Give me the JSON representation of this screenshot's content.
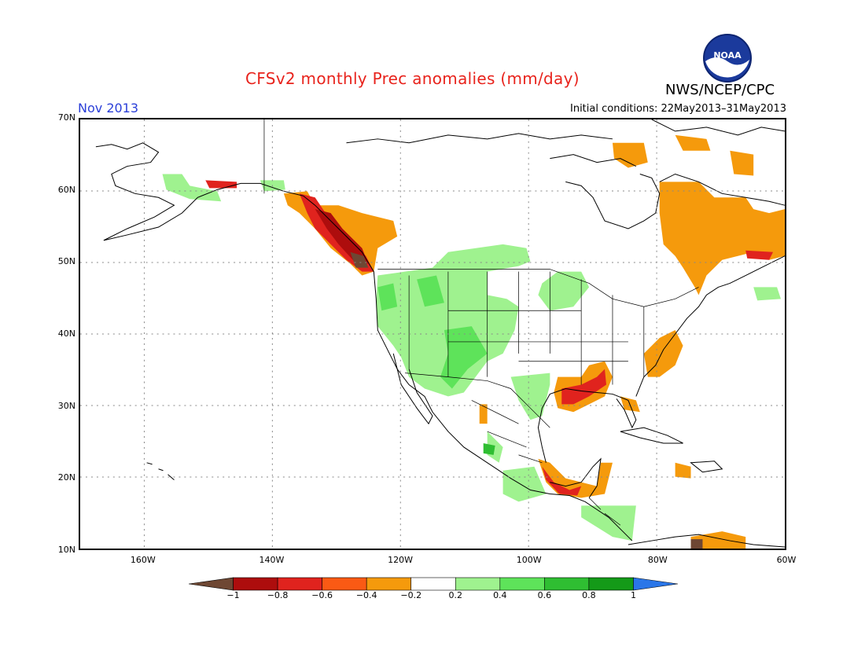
{
  "title": "CFSv2 monthly Prec anomalies (mm/day)",
  "agency": "NWS/NCEP/CPC",
  "logo_text": "NOAA",
  "period": "Nov 2013",
  "initial_conditions": "Initial conditions: 22May2013–31May2013",
  "map": {
    "lon_range": [
      -170,
      -60
    ],
    "lat_range": [
      10,
      70
    ],
    "grid": true,
    "lat_labels": [
      "70N",
      "60N",
      "50N",
      "40N",
      "30N",
      "20N",
      "10N"
    ],
    "lat_values": [
      70,
      60,
      50,
      40,
      30,
      20,
      10
    ],
    "lon_labels": [
      "160W",
      "140W",
      "120W",
      "100W",
      "80W",
      "60W"
    ],
    "lon_values": [
      -160,
      -140,
      -120,
      -100,
      -80,
      -60
    ]
  },
  "colorbar": {
    "labels": [
      "−1",
      "−0.8",
      "−0.6",
      "−0.4",
      "−0.2",
      "0.2",
      "0.4",
      "0.6",
      "0.8",
      "1"
    ],
    "colors": [
      "#6e4733",
      "#ad0d0d",
      "#e0231e",
      "#fa5a14",
      "#f59a0c",
      "#ffffff",
      "#9ff28f",
      "#5ee35a",
      "#2fbe32",
      "#149a18",
      "#2a76e8"
    ]
  },
  "colors": {
    "title": "#e8231c",
    "period": "#2b3fd8",
    "dry_moderate": "#f59a0c",
    "dry_strong": "#fa5a14",
    "dry_heavy": "#e0231e",
    "dry_extreme": "#ad0d0d",
    "dry_max": "#6e4733",
    "wet_light": "#9ff28f",
    "wet_moderate": "#5ee35a",
    "wet_strong": "#2fbe32"
  }
}
